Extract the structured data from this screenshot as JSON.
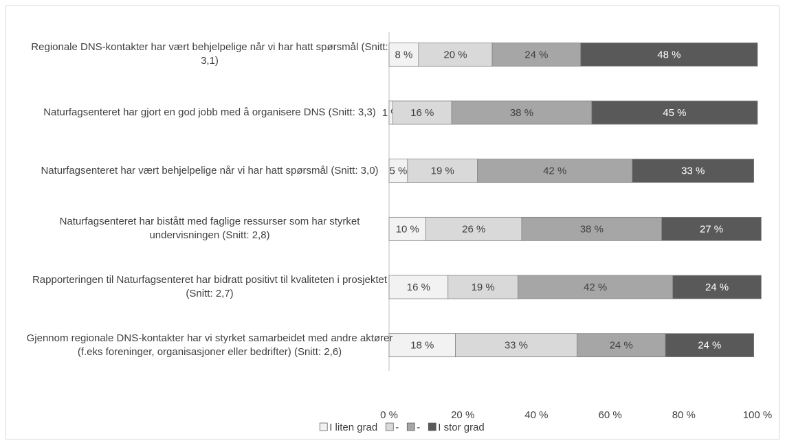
{
  "chart_data": {
    "type": "stacked_barh",
    "categories": [
      "Regionale DNS-kontakter har vært behjelpelige når vi har hatt spørsmål (Snitt: 3,1)",
      "Naturfagsenteret har gjort en god jobb med å organisere DNS (Snitt: 3,3)",
      "Naturfagsenteret har vært behjelpelige når vi har hatt spørsmål (Snitt: 3,0)",
      "Naturfagsenteret har bistått med faglige ressurser som har styrket undervisningen (Snitt: 2,8)",
      "Rapporteringen til Naturfagsenteret har bidratt positivt til kvaliteten i prosjektet (Snitt: 2,7)",
      "Gjennom regionale DNS-kontakter har vi styrket samarbeidet med andre aktører (f.eks foreninger, organisasjoner eller bedrifter) (Snitt: 2,6)"
    ],
    "series": [
      {
        "name": "I liten grad",
        "color": "#f2f2f2",
        "values": [
          8,
          1,
          5,
          10,
          16,
          18
        ],
        "value_labels": [
          "8 %",
          "1 %",
          "5 %",
          "10 %",
          "16 %",
          "18 %"
        ]
      },
      {
        "name": "-",
        "color": "#d9d9d9",
        "values": [
          20,
          16,
          19,
          26,
          19,
          33
        ],
        "value_labels": [
          "20 %",
          "16 %",
          "19 %",
          "26 %",
          "19 %",
          "33 %"
        ]
      },
      {
        "name": "-",
        "color": "#a6a6a6",
        "values": [
          24,
          38,
          42,
          38,
          42,
          24
        ],
        "value_labels": [
          "24 %",
          "38 %",
          "42 %",
          "38 %",
          "42 %",
          "24 %"
        ]
      },
      {
        "name": "I stor grad",
        "color": "#595959",
        "values": [
          48,
          45,
          33,
          27,
          24,
          24
        ],
        "value_labels": [
          "48 %",
          "45 %",
          "33 %",
          "27 %",
          "24 %",
          "24 %"
        ]
      }
    ],
    "xlim": [
      0,
      100
    ],
    "xticks": [
      {
        "value": 0,
        "label": "0 %"
      },
      {
        "value": 20,
        "label": "20 %"
      },
      {
        "value": 40,
        "label": "40 %"
      },
      {
        "value": 60,
        "label": "60 %"
      },
      {
        "value": 80,
        "label": "80 %"
      },
      {
        "value": 100,
        "label": "100 %"
      }
    ],
    "legend": "bottom"
  }
}
